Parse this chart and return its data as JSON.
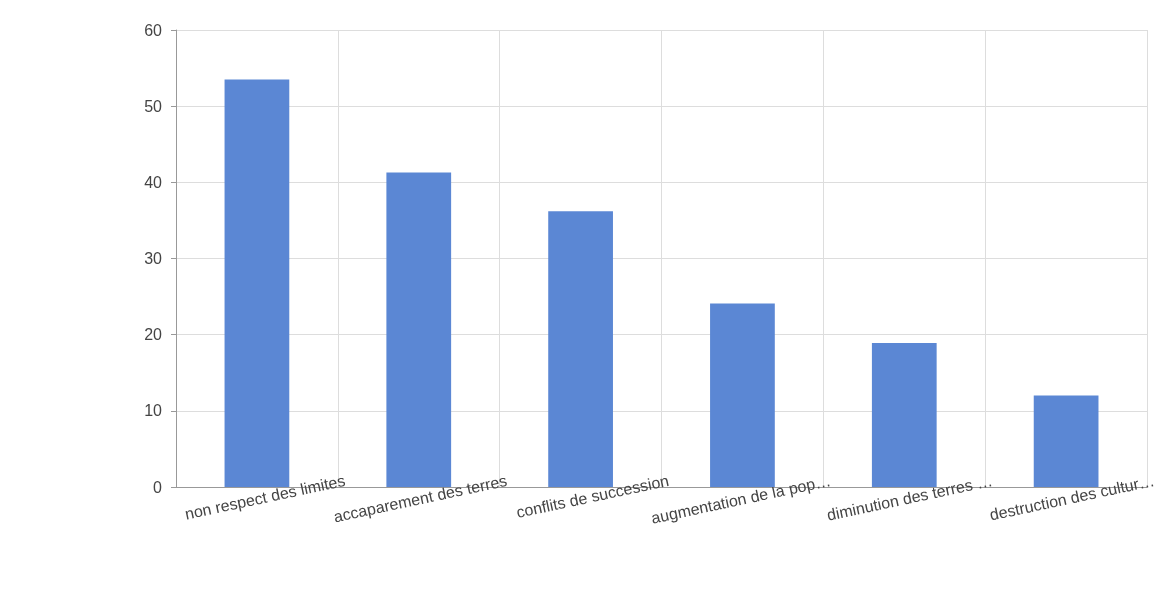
{
  "chart_data": {
    "type": "bar",
    "categories": [
      "non respect des limites",
      "accaparement des terres",
      "conflits de succession",
      "augmentation de la pop…",
      "diminution des terres …",
      "destruction des cultur…"
    ],
    "values": [
      53.5,
      41.3,
      36.2,
      24.1,
      18.9,
      12
    ],
    "color": "#5b87d4",
    "ylim": [
      0,
      60
    ],
    "yticks": [
      0,
      10,
      20,
      30,
      40,
      50,
      60
    ],
    "grid": true
  }
}
